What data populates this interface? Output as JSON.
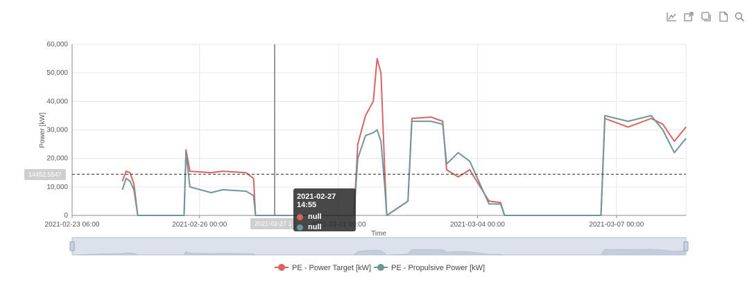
{
  "toolbar": {
    "icons": [
      "line-chart-icon",
      "export-icon",
      "restore-icon",
      "data-view-icon",
      "zoom-icon"
    ]
  },
  "chart_data": {
    "type": "line",
    "xlabel": "Time",
    "ylabel": "Power [kW]",
    "ylim": [
      0,
      60000
    ],
    "yticks": [
      "0",
      "10,000",
      "20,000",
      "30,000",
      "40,000",
      "50,000",
      "60,000"
    ],
    "xticks": [
      "2021-02-23 06:00",
      "2021-02-26 00:00",
      "2021-03-01 00:00",
      "2021-03-04 00:00",
      "2021-03-07 00:00"
    ],
    "grid": true,
    "legend_position": "bottom",
    "series": [
      {
        "name": "PE - Power Target [kW]",
        "color": "#d9635f",
        "values": [
          {
            "t": "2021-02-24 08:00",
            "v": 12000
          },
          {
            "t": "2021-02-24 10:00",
            "v": 15500
          },
          {
            "t": "2021-02-24 12:00",
            "v": 15000
          },
          {
            "t": "2021-02-24 14:00",
            "v": 11000
          },
          {
            "t": "2021-02-24 16:00",
            "v": 0
          },
          {
            "t": "2021-02-25 16:00",
            "v": 0
          },
          {
            "t": "2021-02-25 17:00",
            "v": 23000
          },
          {
            "t": "2021-02-25 19:00",
            "v": 15500
          },
          {
            "t": "2021-02-26 06:00",
            "v": 15000
          },
          {
            "t": "2021-02-26 12:00",
            "v": 15500
          },
          {
            "t": "2021-02-27 00:00",
            "v": 15000
          },
          {
            "t": "2021-02-27 04:00",
            "v": 13000
          },
          {
            "t": "2021-02-27 05:00",
            "v": 0
          },
          {
            "t": "2021-03-01 08:00",
            "v": 0
          },
          {
            "t": "2021-03-01 10:00",
            "v": 25000
          },
          {
            "t": "2021-03-01 14:00",
            "v": 35000
          },
          {
            "t": "2021-03-01 18:00",
            "v": 40000
          },
          {
            "t": "2021-03-01 20:00",
            "v": 55000
          },
          {
            "t": "2021-03-01 22:00",
            "v": 50000
          },
          {
            "t": "2021-03-02 00:00",
            "v": 15000
          },
          {
            "t": "2021-03-02 01:00",
            "v": 0
          },
          {
            "t": "2021-03-02 12:00",
            "v": 5000
          },
          {
            "t": "2021-03-02 14:00",
            "v": 34000
          },
          {
            "t": "2021-03-03 00:00",
            "v": 34500
          },
          {
            "t": "2021-03-03 06:00",
            "v": 33000
          },
          {
            "t": "2021-03-03 08:00",
            "v": 16000
          },
          {
            "t": "2021-03-03 14:00",
            "v": 13500
          },
          {
            "t": "2021-03-03 20:00",
            "v": 16000
          },
          {
            "t": "2021-03-04 06:00",
            "v": 5000
          },
          {
            "t": "2021-03-04 12:00",
            "v": 4500
          },
          {
            "t": "2021-03-04 14:00",
            "v": 0
          },
          {
            "t": "2021-03-06 16:00",
            "v": 0
          },
          {
            "t": "2021-03-06 18:00",
            "v": 34000
          },
          {
            "t": "2021-03-07 06:00",
            "v": 31000
          },
          {
            "t": "2021-03-07 18:00",
            "v": 34000
          },
          {
            "t": "2021-03-08 00:00",
            "v": 32000
          },
          {
            "t": "2021-03-08 06:00",
            "v": 26000
          },
          {
            "t": "2021-03-08 12:00",
            "v": 31000
          }
        ]
      },
      {
        "name": "PE - Propulsive Power [kW]",
        "color": "#6e959a",
        "values": [
          {
            "t": "2021-02-24 08:00",
            "v": 9000
          },
          {
            "t": "2021-02-24 10:00",
            "v": 13000
          },
          {
            "t": "2021-02-24 12:00",
            "v": 12000
          },
          {
            "t": "2021-02-24 14:00",
            "v": 9000
          },
          {
            "t": "2021-02-24 16:00",
            "v": 0
          },
          {
            "t": "2021-02-25 16:00",
            "v": 0
          },
          {
            "t": "2021-02-25 17:00",
            "v": 22000
          },
          {
            "t": "2021-02-25 19:00",
            "v": 10000
          },
          {
            "t": "2021-02-26 06:00",
            "v": 8000
          },
          {
            "t": "2021-02-26 12:00",
            "v": 9000
          },
          {
            "t": "2021-02-27 00:00",
            "v": 8500
          },
          {
            "t": "2021-02-27 04:00",
            "v": 7000
          },
          {
            "t": "2021-02-27 05:00",
            "v": 0
          },
          {
            "t": "2021-03-01 08:00",
            "v": 0
          },
          {
            "t": "2021-03-01 10:00",
            "v": 20000
          },
          {
            "t": "2021-03-01 14:00",
            "v": 28000
          },
          {
            "t": "2021-03-01 18:00",
            "v": 29000
          },
          {
            "t": "2021-03-01 20:00",
            "v": 30000
          },
          {
            "t": "2021-03-01 22:00",
            "v": 26000
          },
          {
            "t": "2021-03-02 00:00",
            "v": 10000
          },
          {
            "t": "2021-03-02 01:00",
            "v": 0
          },
          {
            "t": "2021-03-02 12:00",
            "v": 5000
          },
          {
            "t": "2021-03-02 14:00",
            "v": 33000
          },
          {
            "t": "2021-03-03 00:00",
            "v": 33000
          },
          {
            "t": "2021-03-03 06:00",
            "v": 32000
          },
          {
            "t": "2021-03-03 08:00",
            "v": 18000
          },
          {
            "t": "2021-03-03 14:00",
            "v": 22000
          },
          {
            "t": "2021-03-03 20:00",
            "v": 19000
          },
          {
            "t": "2021-03-04 06:00",
            "v": 4000
          },
          {
            "t": "2021-03-04 12:00",
            "v": 4000
          },
          {
            "t": "2021-03-04 14:00",
            "v": 0
          },
          {
            "t": "2021-03-06 16:00",
            "v": 0
          },
          {
            "t": "2021-03-06 18:00",
            "v": 35000
          },
          {
            "t": "2021-03-07 06:00",
            "v": 33000
          },
          {
            "t": "2021-03-07 18:00",
            "v": 35000
          },
          {
            "t": "2021-03-08 00:00",
            "v": 30000
          },
          {
            "t": "2021-03-08 06:00",
            "v": 22000
          },
          {
            "t": "2021-03-08 12:00",
            "v": 27000
          }
        ]
      }
    ],
    "reference_line": {
      "value": "14452.5547",
      "style": "dashed"
    }
  },
  "tooltip": {
    "title": "2021-02-27 14:55",
    "rows": [
      {
        "color": "#d9635f",
        "value": "null"
      },
      {
        "color": "#6e959a",
        "value": "null"
      }
    ]
  },
  "axis_pointer": {
    "x_label": "2021-02-27 1",
    "y_label": "14452.5547"
  }
}
